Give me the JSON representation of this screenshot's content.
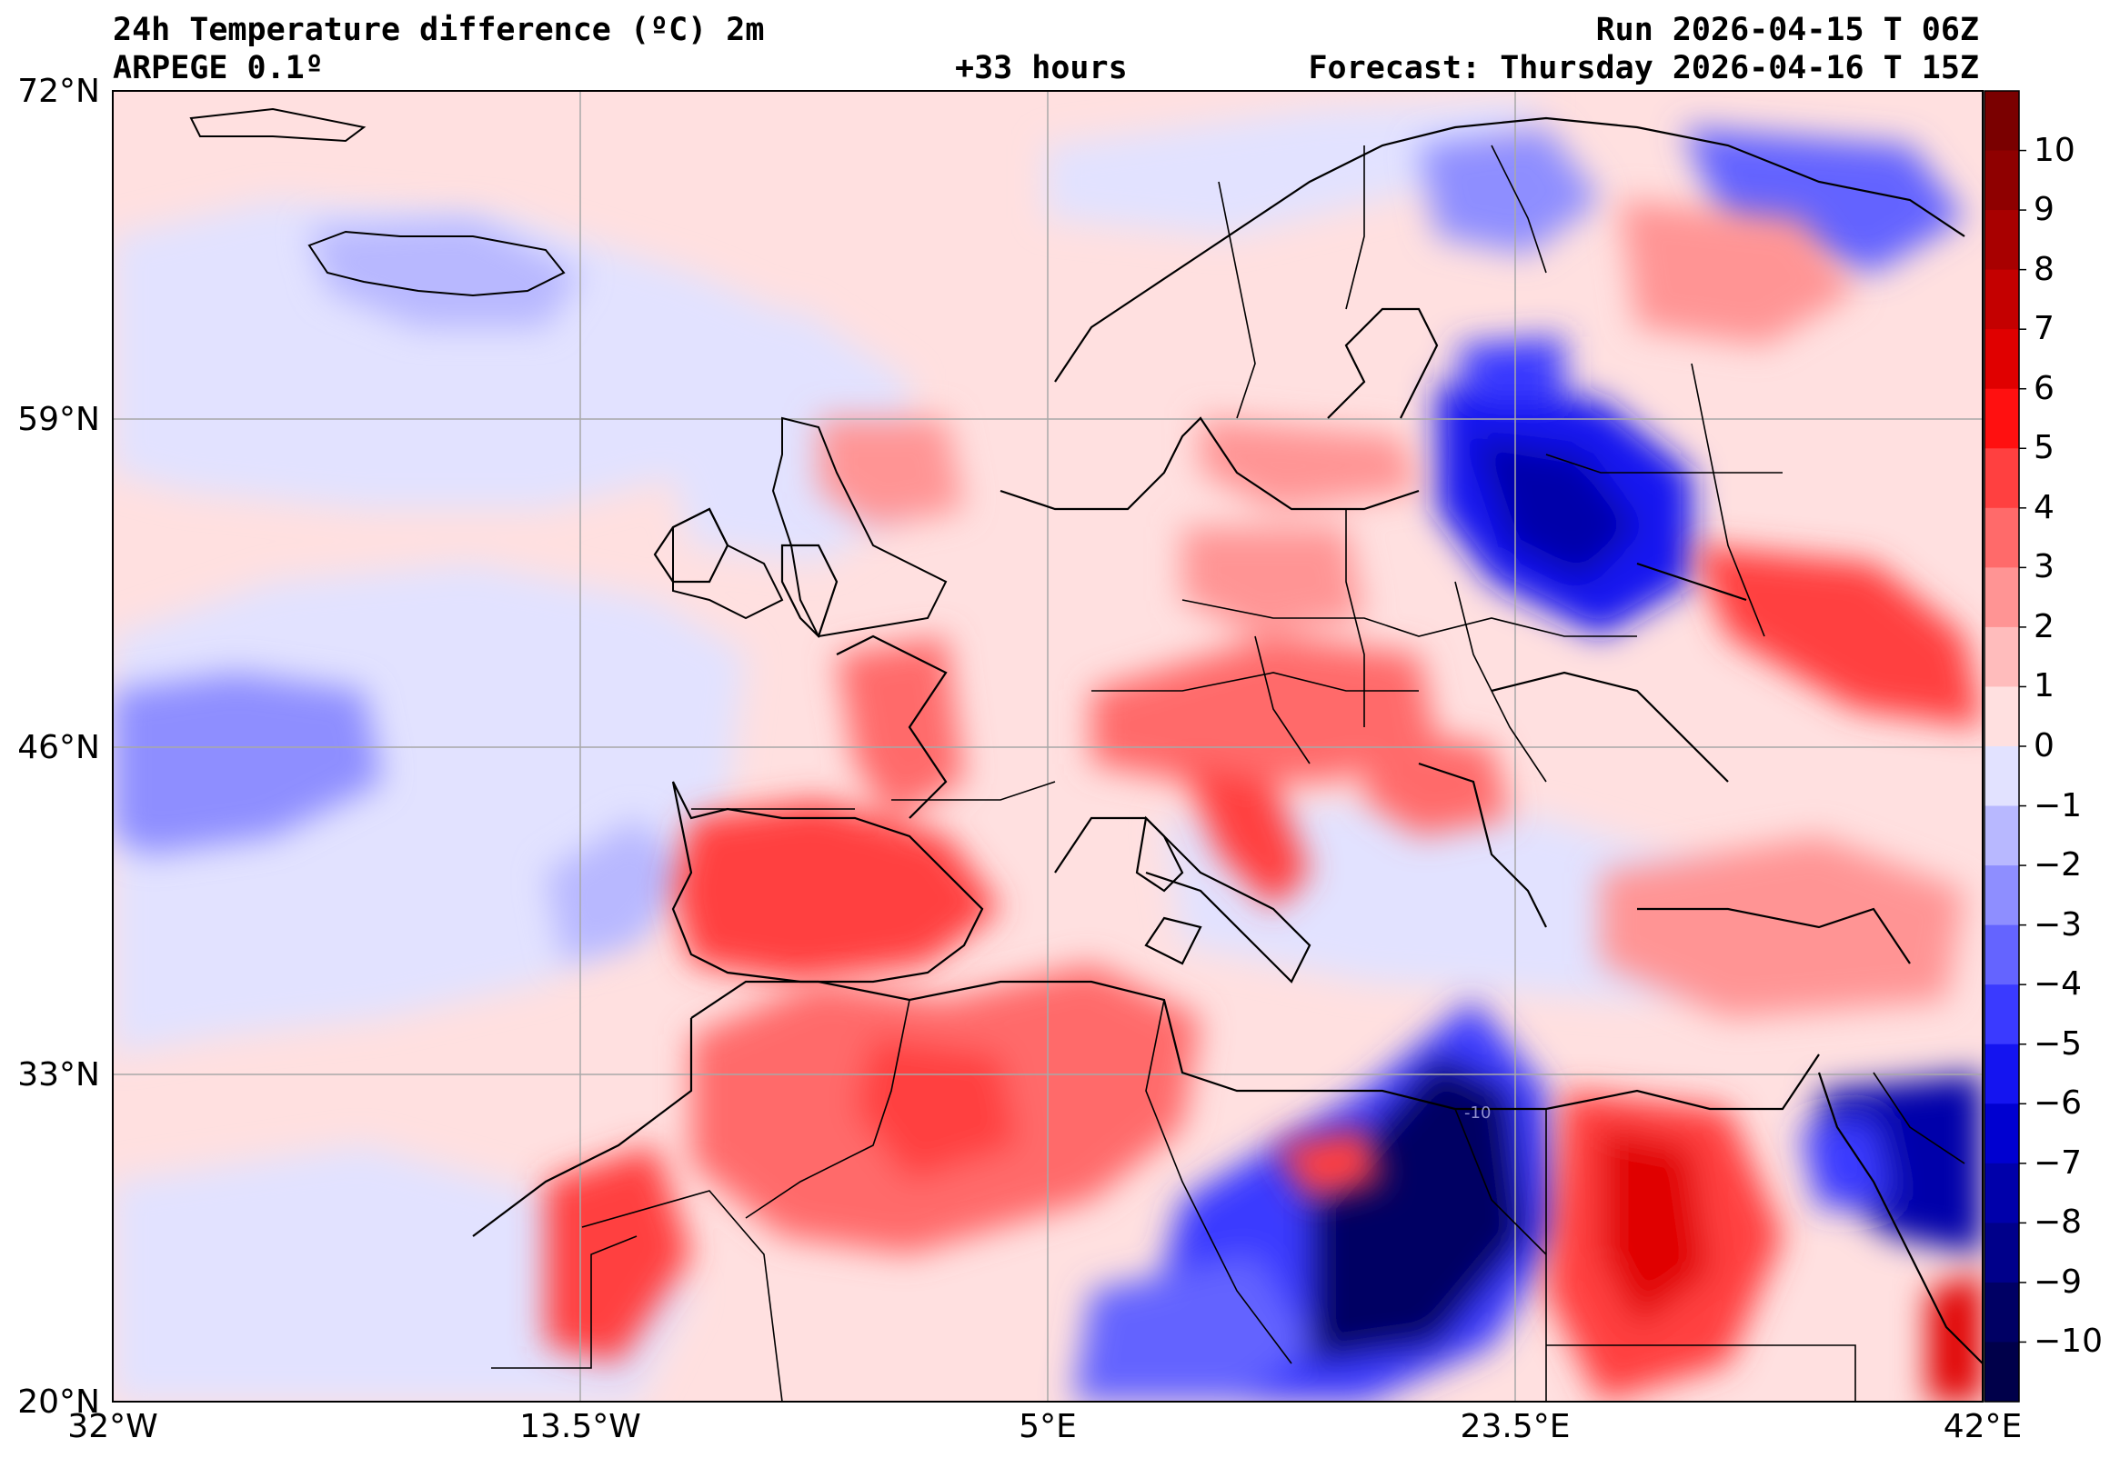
{
  "header": {
    "title": "24h Temperature difference (ºC) 2m",
    "model": "ARPEGE 0.1º",
    "lead": "+33 hours",
    "run": "Run 2026-04-15 T 06Z",
    "forecast": "Forecast: Thursday 2026-04-16 T 15Z"
  },
  "map": {
    "lat_labels": [
      "72°N",
      "59°N",
      "46°N",
      "33°N",
      "20°N"
    ],
    "lon_labels": [
      "32°W",
      "13.5°W",
      "5°E",
      "23.5°E",
      "42°E"
    ],
    "contour_label": "-10"
  },
  "colorbar": {
    "ticks": [
      "10",
      "9",
      "8",
      "7",
      "6",
      "5",
      "4",
      "3",
      "2",
      "1",
      "0",
      "−1",
      "−2",
      "−3",
      "−4",
      "−5",
      "−6",
      "−7",
      "−8",
      "−9",
      "−10"
    ],
    "colors": [
      "#7a0000",
      "#8f0000",
      "#a80000",
      "#c40000",
      "#e00000",
      "#ff1010",
      "#ff4040",
      "#ff6a6a",
      "#ff9494",
      "#ffbcbc",
      "#ffe0e0",
      "#e2e2ff",
      "#b8b8ff",
      "#8e8eff",
      "#6464ff",
      "#3a3aff",
      "#1414f0",
      "#0000d0",
      "#0000aa",
      "#00008a",
      "#000064",
      "#00004a"
    ]
  }
}
